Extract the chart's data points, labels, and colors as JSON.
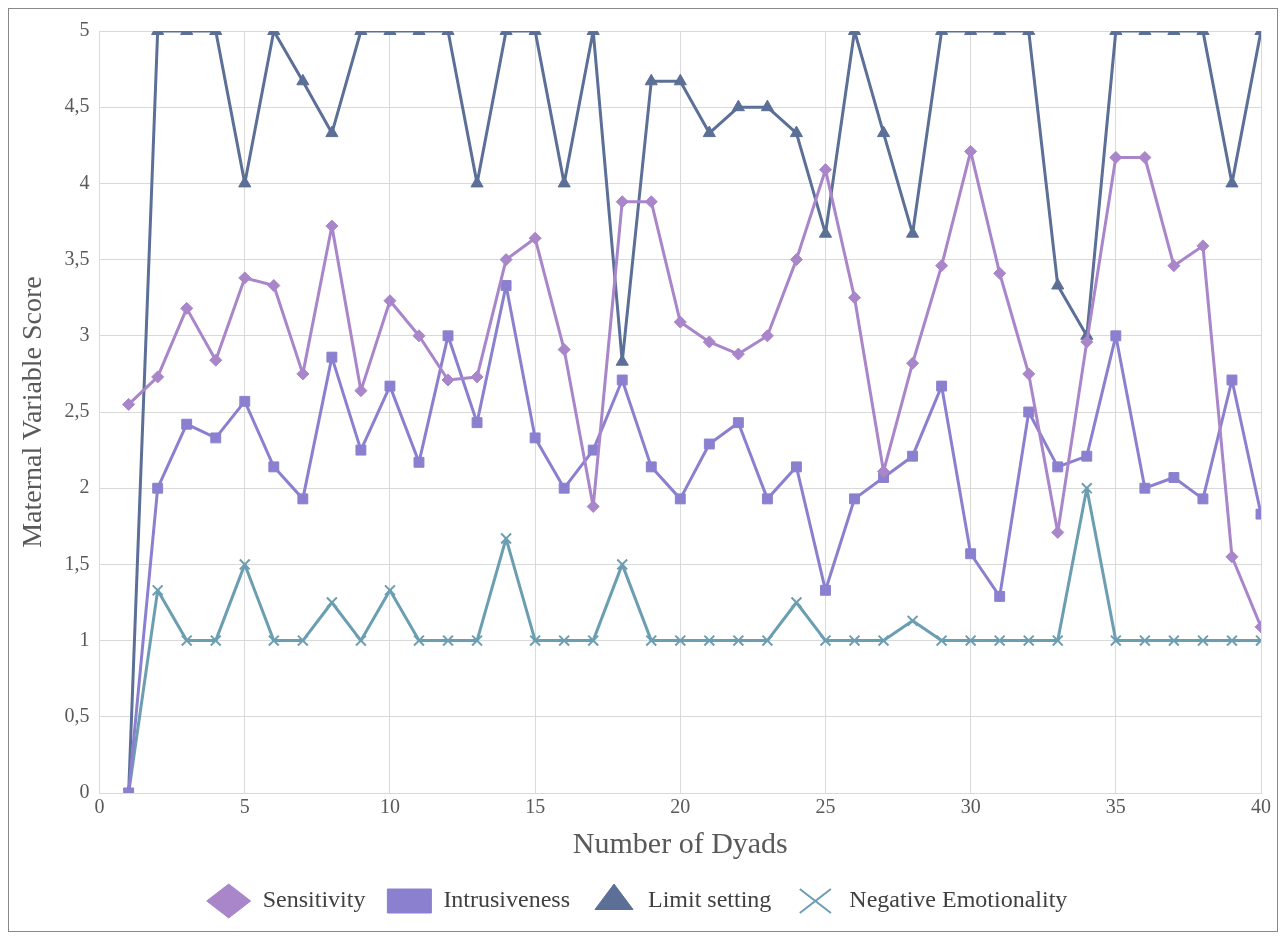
{
  "chart_data": {
    "type": "line",
    "xlabel": "Number of Dyads",
    "ylabel": "Maternal Variable Score",
    "x": [
      1,
      2,
      3,
      4,
      5,
      6,
      7,
      8,
      9,
      10,
      11,
      12,
      13,
      14,
      15,
      16,
      17,
      18,
      19,
      20,
      21,
      22,
      23,
      24,
      25,
      26,
      27,
      28,
      29,
      30,
      31,
      32,
      33,
      34,
      35,
      36,
      37,
      38,
      39,
      40
    ],
    "xlim": [
      0,
      40
    ],
    "xticks": [
      0,
      5,
      10,
      15,
      20,
      25,
      30,
      35,
      40
    ],
    "ylim": [
      0,
      5
    ],
    "yticks": [
      0,
      {
        "value": 0.5,
        "label": "0,5"
      },
      1,
      {
        "value": 1.5,
        "label": "1,5"
      },
      2,
      {
        "value": 2.5,
        "label": "2,5"
      },
      3,
      {
        "value": 3.5,
        "label": "3,5"
      },
      4,
      {
        "value": 4.5,
        "label": "4,5"
      },
      5
    ],
    "grid": true,
    "legend": "bottom",
    "line_style": "solid",
    "series": [
      {
        "name": "Sensitivity",
        "color": "#a985c9",
        "marker": "diamond",
        "values": [
          2.55,
          2.73,
          3.18,
          2.84,
          3.38,
          3.33,
          2.75,
          3.72,
          2.64,
          3.23,
          3.0,
          2.71,
          2.73,
          3.5,
          3.64,
          2.91,
          1.88,
          3.88,
          3.88,
          3.09,
          2.96,
          2.88,
          3.0,
          3.5,
          4.09,
          3.25,
          2.11,
          2.82,
          3.46,
          4.21,
          3.41,
          2.75,
          1.71,
          2.96,
          4.17,
          4.17,
          3.46,
          3.59,
          1.55,
          1.09
        ]
      },
      {
        "name": "Intrusiveness",
        "color": "#8a80cf",
        "marker": "square",
        "values": [
          0,
          2.0,
          2.42,
          2.33,
          2.57,
          2.14,
          1.93,
          2.86,
          2.25,
          2.67,
          2.17,
          3.0,
          2.43,
          3.33,
          2.33,
          2.0,
          2.25,
          2.71,
          2.14,
          1.93,
          2.29,
          2.43,
          1.93,
          2.14,
          1.33,
          1.93,
          2.07,
          2.21,
          2.67,
          1.57,
          1.29,
          2.5,
          2.14,
          2.21,
          3.0,
          2.0,
          2.07,
          1.93,
          2.71,
          1.83
        ]
      },
      {
        "name": "Limit setting",
        "color": "#5b6f97",
        "marker": "triangle",
        "values": [
          0,
          5,
          5,
          5,
          4,
          5,
          4.67,
          4.33,
          5,
          5,
          5,
          5,
          4,
          5,
          5,
          4,
          5,
          2.83,
          4.67,
          4.67,
          4.33,
          4.5,
          4.5,
          4.33,
          3.67,
          5,
          4.33,
          3.67,
          5,
          5,
          5,
          5,
          3.33,
          3.0,
          5,
          5,
          5,
          5,
          4,
          5
        ]
      },
      {
        "name": "Negative Emotionality",
        "color": "#6b9eb1",
        "marker": "cross",
        "values": [
          0,
          1.33,
          1,
          1,
          1.5,
          1,
          1,
          1.25,
          1,
          1.33,
          1,
          1,
          1,
          1.67,
          1,
          1,
          1,
          1.5,
          1,
          1,
          1,
          1,
          1,
          1.25,
          1,
          1,
          1,
          1.13,
          1,
          1,
          1,
          1,
          1,
          2,
          1,
          1,
          1,
          1,
          1,
          1
        ]
      }
    ]
  }
}
